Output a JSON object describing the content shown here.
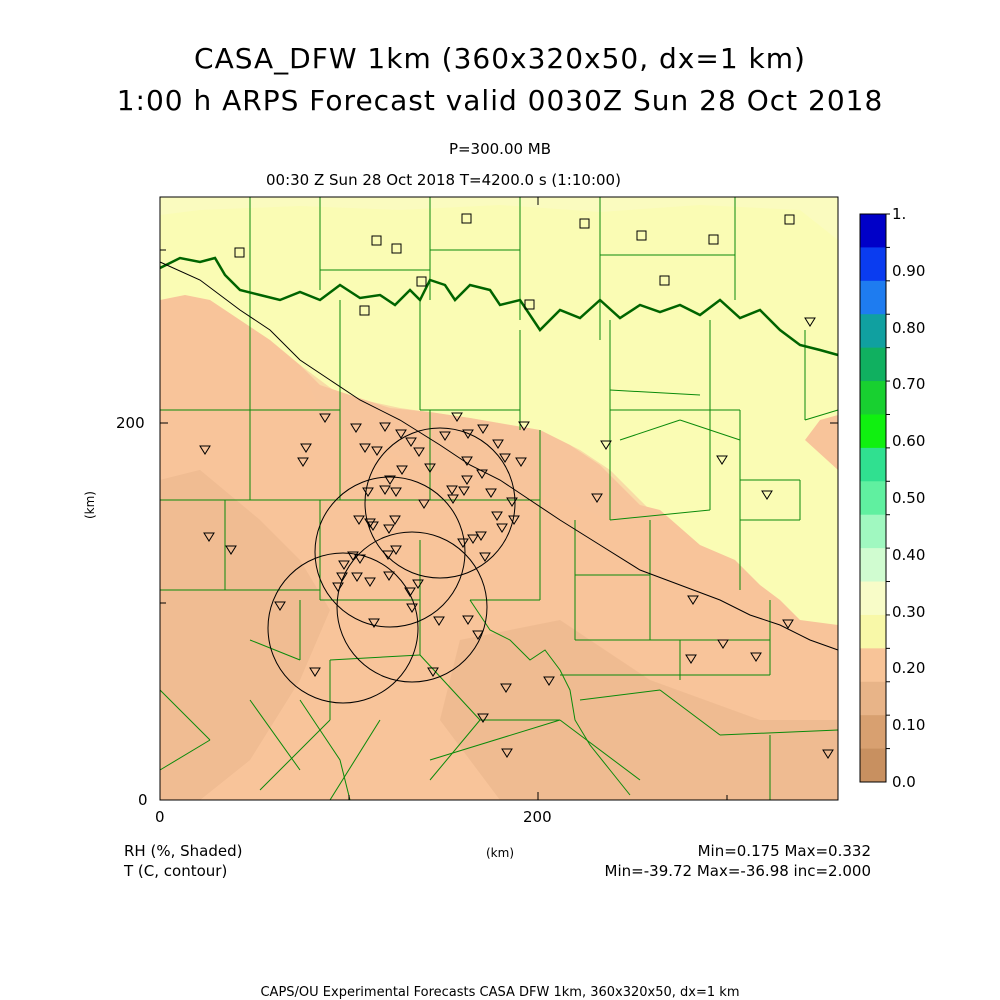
{
  "title_line1": "CASA_DFW 1km (360x320x50, dx=1 km)",
  "title_line2": "1:00 h ARPS Forecast valid 0030Z Sun 28 Oct 2018",
  "pressure_label": "P=300.00 MB",
  "time_label": "00:30 Z Sun 28 Oct 2018   T=4200.0 s (1:10:00)",
  "axes": {
    "y_unit": "(km)",
    "x_unit": "(km)",
    "y_ticks": [
      "200",
      "0"
    ],
    "x_ticks": [
      "0",
      "200"
    ]
  },
  "legend": {
    "labels": [
      "1.",
      "0.90",
      "0.80",
      "0.70",
      "0.60",
      "0.50",
      "0.40",
      "0.30",
      "0.20",
      "0.10",
      "0.0"
    ],
    "colors": [
      "#0000c8",
      "#0a3cf0",
      "#1e7cf0",
      "#10a0a0",
      "#10b060",
      "#18d030",
      "#10f010",
      "#30e090",
      "#60f0a0",
      "#a0f8c0",
      "#d0fcd0",
      "#f8fcc8",
      "#f8f8a8",
      "#f8c498",
      "#e8b488",
      "#d8a070",
      "#c89060"
    ]
  },
  "info": {
    "rh_label": "RH (%, Shaded)",
    "t_label": "T (C, contour)",
    "km_label": "(km)",
    "rh_minmax": "Min=0.175 Max=0.332",
    "t_minmax": "Min=-39.72 Max=-36.98 inc=2.000"
  },
  "footer": "CAPS/OU Experimental Forecasts  CASA DFW 1km, 360x320x50, dx=1 km",
  "colors": {
    "dry": "#f8c49a",
    "drier": "#e8b48a",
    "moist": "#fafcb4",
    "county": "#008000",
    "river": "#006400"
  }
}
